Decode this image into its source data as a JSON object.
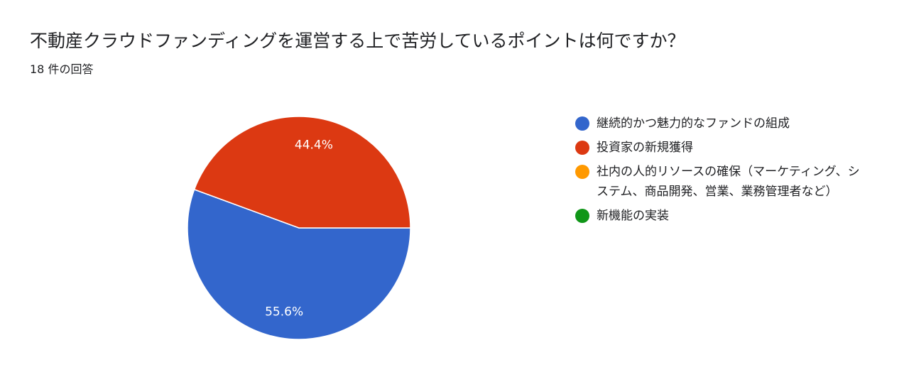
{
  "header": {
    "title": "不動産クラウドファンディングを運営する上で苦労しているポイントは何ですか？",
    "response_count": "18 件の回答"
  },
  "chart_data": {
    "type": "pie",
    "title": "不動産クラウドファンディングを運営する上で苦労しているポイントは何ですか？",
    "legend_position": "right",
    "slices": [
      {
        "name": "継続的かつ魅力的なファンドの組成",
        "value": 55.6,
        "label": "55.6%",
        "color": "#3366cc"
      },
      {
        "name": "投資家の新規獲得",
        "value": 44.4,
        "label": "44.4%",
        "color": "#dc3912"
      },
      {
        "name": "社内の人的リソースの確保（マーケティング、システム、商品開発、営業、業務管理者など）",
        "value": 0,
        "label": "",
        "color": "#ff9900"
      },
      {
        "name": "新機能の実装",
        "value": 0,
        "label": "",
        "color": "#109618"
      }
    ]
  }
}
